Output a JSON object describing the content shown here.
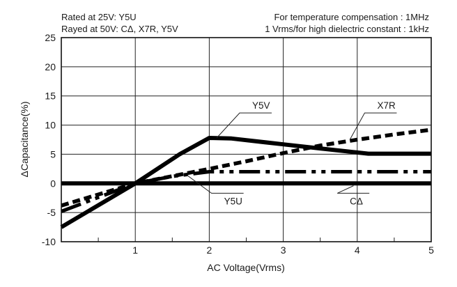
{
  "chart_data": {
    "type": "line",
    "xlabel": "AC Voltage(Vrms)",
    "ylabel": "ΔCapacitance(%)",
    "xlim": [
      0,
      5
    ],
    "ylim": [
      -10,
      25
    ],
    "grid": true,
    "x_ticks": [
      1,
      2,
      3,
      4,
      5
    ],
    "y_ticks": [
      -10,
      -5,
      0,
      5,
      10,
      15,
      20,
      25
    ],
    "notes": {
      "top_left_1": "Rated at 25V: Y5U",
      "top_left_2": "Rayed at 50V: CΔ, X7R, Y5V",
      "top_right_1": "For temperature compensation : 1MHz",
      "top_right_2": "1 Vrms/for high dielectric constant : 1kHz"
    },
    "series": [
      {
        "name": "Y5V",
        "style": "solid",
        "points": [
          [
            0,
            -7.5
          ],
          [
            1,
            0
          ],
          [
            1.6,
            5
          ],
          [
            2,
            7.8
          ],
          [
            2.3,
            7.7
          ],
          [
            3,
            6.7
          ],
          [
            3.5,
            6.0
          ],
          [
            4,
            5.3
          ],
          [
            4.15,
            5.1
          ],
          [
            5,
            5.1
          ]
        ]
      },
      {
        "name": "X7R",
        "style": "dotted",
        "points": [
          [
            0,
            -3.8
          ],
          [
            1,
            0
          ],
          [
            2,
            2.5
          ],
          [
            2.5,
            3.8
          ],
          [
            3,
            5.2
          ],
          [
            3.5,
            6.5
          ],
          [
            4,
            7.5
          ],
          [
            4.5,
            8.4
          ],
          [
            5,
            9.2
          ]
        ]
      },
      {
        "name": "Y5U",
        "style": "dash-dot",
        "points": [
          [
            0,
            -4.8
          ],
          [
            1,
            0
          ],
          [
            1.5,
            1.2
          ],
          [
            2,
            2.0
          ],
          [
            3,
            2.0
          ],
          [
            4,
            2.0
          ],
          [
            5,
            2.0
          ]
        ]
      },
      {
        "name": "CΔ",
        "style": "solid",
        "points": [
          [
            0,
            0
          ],
          [
            5,
            0
          ]
        ]
      }
    ],
    "callouts": [
      {
        "label": "Y5V",
        "series": "Y5V",
        "anchor": [
          2.1,
          7.8
        ],
        "text_at": [
          2.58,
          12.8
        ]
      },
      {
        "label": "X7R",
        "series": "X7R",
        "anchor": [
          3.9,
          7.5
        ],
        "text_at": [
          4.27,
          12.8
        ]
      },
      {
        "label": "Y5U",
        "series": "Y5U",
        "anchor": [
          1.7,
          1.4
        ],
        "text_at": [
          2.2,
          -3.6
        ]
      },
      {
        "label": "CΔ",
        "series": "CΔ",
        "anchor": [
          3.95,
          -0.4
        ],
        "text_at": [
          3.9,
          -3.6
        ]
      }
    ]
  }
}
